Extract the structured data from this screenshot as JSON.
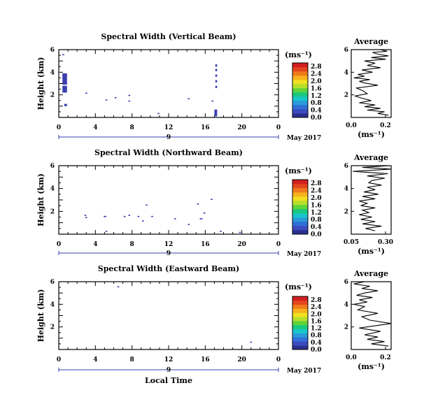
{
  "figure": {
    "xlabel": "Local Time",
    "month_label": "May 2017",
    "colorbar_unit": "(ms⁻¹)",
    "avg_title": "Average",
    "avg_xlabel": "(ms⁻¹)"
  },
  "chart_data": [
    {
      "type": "heatmap",
      "title": "Spectral Width (Vertical Beam)",
      "ylabel": "Height (km)",
      "xlim": [
        0,
        24
      ],
      "ylim": [
        0,
        6
      ],
      "xticks": [
        "0",
        "4",
        "8",
        "12",
        "16",
        "20",
        "0"
      ],
      "yticks": [
        "2",
        "4",
        "6"
      ],
      "day_label": "9",
      "color": "#3a3fb0",
      "cells": [
        [
          0.4,
          2.9,
          0.5,
          1.0
        ],
        [
          0.4,
          2.2,
          0.5,
          0.6
        ],
        [
          0.6,
          1.0,
          0.3,
          0.2
        ],
        [
          0.4,
          5.5,
          0.2,
          0.1
        ],
        [
          2.9,
          2.1,
          0.2,
          0.1
        ],
        [
          5.1,
          1.5,
          0.2,
          0.1
        ],
        [
          6.1,
          1.7,
          0.2,
          0.1
        ],
        [
          7.6,
          1.9,
          0.2,
          0.1
        ],
        [
          7.6,
          1.4,
          0.2,
          0.1
        ],
        [
          10.8,
          0.3,
          0.2,
          0.1
        ],
        [
          14.1,
          1.6,
          0.2,
          0.1
        ],
        [
          16.7,
          1.4,
          0.2,
          0.1
        ],
        [
          17.1,
          4.5,
          0.2,
          0.2
        ],
        [
          17.1,
          4.1,
          0.2,
          0.2
        ],
        [
          17.1,
          3.6,
          0.2,
          0.2
        ],
        [
          17.1,
          3.1,
          0.2,
          0.2
        ],
        [
          17.1,
          2.6,
          0.2,
          0.2
        ],
        [
          17.0,
          0.1,
          0.3,
          0.6
        ]
      ],
      "colorbar": {
        "ticks": [
          "0.0",
          "0.4",
          "0.8",
          "1.2",
          "1.6",
          "2.0",
          "2.4",
          "2.8"
        ]
      },
      "average": {
        "xlim": [
          0,
          0.3
        ],
        "xticks": [
          "0.0",
          "0.2"
        ],
        "ylim": [
          0,
          6
        ],
        "yticks": [
          "2",
          "4",
          "6"
        ],
        "x": [
          0.28,
          0.2,
          0.25,
          0.12,
          0.22,
          0.1,
          0.18,
          0.06,
          0.15,
          0.08,
          0.03,
          0.12,
          0.09,
          0.04,
          0.2,
          0.1,
          0.06,
          0.14,
          0.02,
          0.1,
          0.05,
          0.16,
          0.08,
          0.22,
          0.12,
          0.18,
          0.1,
          0.26,
          0.15,
          0.28,
          0.2,
          0.16,
          0.27,
          0.22
        ],
        "y": [
          0.2,
          0.35,
          0.5,
          0.65,
          0.8,
          0.95,
          1.1,
          1.3,
          1.5,
          1.7,
          1.9,
          2.1,
          2.35,
          2.6,
          2.85,
          3.05,
          3.2,
          3.35,
          3.5,
          3.65,
          3.8,
          4.0,
          4.2,
          4.4,
          4.6,
          4.8,
          5.0,
          5.15,
          5.3,
          5.45,
          5.6,
          5.75,
          5.85,
          6.0
        ]
      }
    },
    {
      "type": "heatmap",
      "title": "Spectral Width (Northward Beam)",
      "ylabel": "Height (km)",
      "xlim": [
        0,
        24
      ],
      "ylim": [
        0,
        6
      ],
      "xticks": [
        "0",
        "4",
        "8",
        "12",
        "16",
        "20",
        "0"
      ],
      "yticks": [
        "2",
        "4",
        "6"
      ],
      "day_label": "9",
      "color": "#3a3fb0",
      "cells": [
        [
          2.8,
          1.6,
          0.2,
          0.1
        ],
        [
          2.9,
          1.4,
          0.2,
          0.1
        ],
        [
          4.9,
          1.5,
          0.3,
          0.1
        ],
        [
          5.1,
          0.2,
          0.2,
          0.1
        ],
        [
          7.1,
          1.5,
          0.2,
          0.1
        ],
        [
          7.6,
          1.6,
          0.2,
          0.1
        ],
        [
          8.6,
          1.5,
          0.2,
          0.1
        ],
        [
          9.1,
          1.1,
          0.2,
          0.1
        ],
        [
          9.5,
          2.5,
          0.2,
          0.1
        ],
        [
          10.1,
          1.5,
          0.2,
          0.1
        ],
        [
          12.6,
          1.3,
          0.2,
          0.1
        ],
        [
          14.1,
          0.8,
          0.2,
          0.1
        ],
        [
          15.1,
          2.6,
          0.2,
          0.1
        ],
        [
          15.4,
          1.3,
          0.3,
          0.1
        ],
        [
          15.8,
          1.8,
          0.2,
          0.1
        ],
        [
          16.6,
          3.0,
          0.2,
          0.1
        ],
        [
          17.6,
          0.2,
          0.2,
          0.1
        ],
        [
          19.7,
          0.1,
          0.2,
          0.1
        ]
      ],
      "colorbar": {
        "ticks": [
          "0.0",
          "0.4",
          "0.8",
          "1.2",
          "1.6",
          "2.0",
          "2.4",
          "2.8"
        ]
      },
      "average": {
        "xlim": [
          0.05,
          0.3
        ],
        "xticks": [
          "0.05",
          "0.30"
        ],
        "ylim": [
          0,
          6
        ],
        "yticks": [
          "2",
          "4",
          "6"
        ],
        "x": [
          0.2,
          0.14,
          0.24,
          0.12,
          0.2,
          0.11,
          0.18,
          0.1,
          0.16,
          0.12,
          0.2,
          0.11,
          0.15,
          0.1,
          0.2,
          0.12,
          0.22,
          0.13,
          0.2,
          0.15,
          0.24,
          0.16,
          0.18,
          0.26,
          0.15,
          0.28,
          0.06,
          0.3,
          0.12,
          0.29
        ],
        "y": [
          0.3,
          0.5,
          0.7,
          0.9,
          1.1,
          1.3,
          1.5,
          1.7,
          1.9,
          2.1,
          2.3,
          2.5,
          2.7,
          2.9,
          3.1,
          3.3,
          3.5,
          3.7,
          3.9,
          4.1,
          4.3,
          4.5,
          4.7,
          4.9,
          5.1,
          5.3,
          5.5,
          5.7,
          5.85,
          6.0
        ]
      }
    },
    {
      "type": "heatmap",
      "title": "Spectral Width (Eastward Beam)",
      "ylabel": "Height (km)",
      "xlim": [
        0,
        24
      ],
      "ylim": [
        0,
        6
      ],
      "xticks": [
        "0",
        "4",
        "8",
        "12",
        "16",
        "20",
        "0"
      ],
      "yticks": [
        "2",
        "4",
        "6"
      ],
      "day_label": "9",
      "color": "#3a3fb0",
      "cells": [
        [
          6.4,
          5.5,
          0.2,
          0.1
        ],
        [
          20.9,
          0.6,
          0.2,
          0.1
        ]
      ],
      "colorbar": {
        "ticks": [
          "0.0",
          "0.4",
          "0.8",
          "1.2",
          "1.6",
          "2.0",
          "2.4",
          "2.8"
        ]
      },
      "average": {
        "xlim": [
          0,
          0.3
        ],
        "xticks": [
          "0.0",
          "0.2"
        ],
        "ylim": [
          0,
          6
        ],
        "yticks": [
          "2",
          "4",
          "6"
        ],
        "x": [
          0.28,
          0.15,
          0.25,
          0.12,
          0.2,
          0.1,
          0.22,
          0.06,
          0.3,
          0.14,
          0.08,
          0.2,
          0.05,
          0.1,
          0.02,
          0.12,
          0.06,
          0.16,
          0.04,
          0.1,
          0.2,
          0.08,
          0.14,
          0.02,
          0.1
        ],
        "y": [
          0.3,
          0.5,
          0.7,
          0.9,
          1.1,
          1.3,
          1.6,
          1.9,
          2.3,
          2.6,
          2.9,
          3.2,
          3.5,
          3.8,
          4.0,
          4.2,
          4.4,
          4.6,
          4.8,
          5.0,
          5.2,
          5.4,
          5.6,
          5.8,
          6.0
        ]
      }
    }
  ]
}
